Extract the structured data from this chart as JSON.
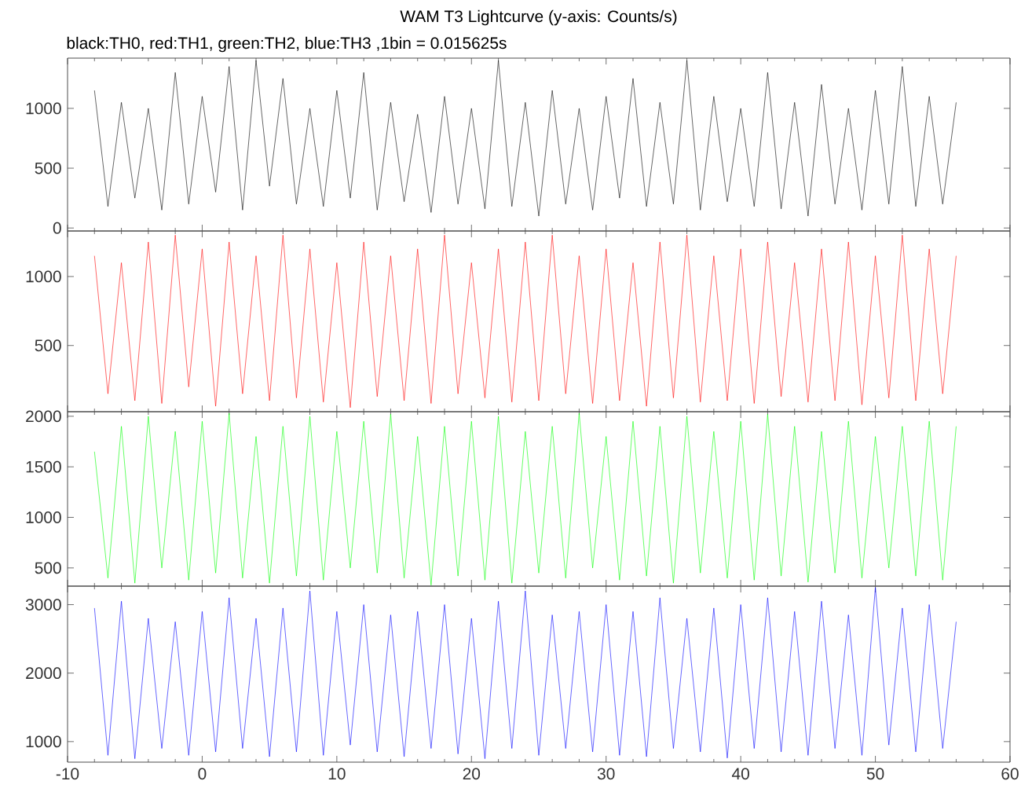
{
  "chart_data": [
    {
      "type": "line",
      "title": "WAM T3 Lightcurve (y-axis: Counts/s)",
      "subtitle": "black:TH0, red:TH1, green:TH2, blue:TH3 ,1bin = 0.015625s",
      "color": "#000000",
      "xlim": [
        -10,
        60
      ],
      "xticks": [
        -10,
        0,
        10,
        20,
        30,
        40,
        50,
        60
      ],
      "ylim": [
        -25,
        1420
      ],
      "yticks": [
        0,
        500,
        1000
      ],
      "tick_labels": "y",
      "x": [
        -8,
        -7,
        -6,
        -5,
        -4,
        -3,
        -2,
        -1,
        0,
        1,
        2,
        3,
        4,
        5,
        6,
        7,
        8,
        9,
        10,
        11,
        12,
        13,
        14,
        15,
        16,
        17,
        18,
        19,
        20,
        21,
        22,
        23,
        24,
        25,
        26,
        27,
        28,
        29,
        30,
        31,
        32,
        33,
        34,
        35,
        36,
        37,
        38,
        39,
        40,
        41,
        42,
        43,
        44,
        45,
        46,
        47,
        48,
        49,
        50,
        51,
        52,
        53,
        54,
        55,
        56
      ],
      "values": [
        1150,
        180,
        1050,
        250,
        1000,
        150,
        1300,
        200,
        1100,
        300,
        1350,
        150,
        1400,
        350,
        1250,
        200,
        1000,
        180,
        1150,
        250,
        1300,
        150,
        1050,
        220,
        950,
        130,
        1100,
        200,
        1000,
        160,
        1400,
        180,
        1050,
        100,
        1150,
        200,
        1000,
        150,
        1100,
        250,
        1250,
        180,
        1050,
        200,
        1400,
        150,
        1100,
        220,
        1000,
        180,
        1300,
        160,
        1050,
        100,
        1200,
        200,
        1000,
        150,
        1150,
        200,
        1350,
        180,
        1100,
        200,
        1050
      ]
    },
    {
      "type": "line",
      "color": "#ff0000",
      "xlim": [
        -10,
        60
      ],
      "xticks": [
        -10,
        0,
        10,
        20,
        30,
        40,
        50,
        60
      ],
      "ylim": [
        20,
        1330
      ],
      "yticks": [
        500,
        1000
      ],
      "tick_labels": "y",
      "x": [
        -8,
        -7,
        -6,
        -5,
        -4,
        -3,
        -2,
        -1,
        0,
        1,
        2,
        3,
        4,
        5,
        6,
        7,
        8,
        9,
        10,
        11,
        12,
        13,
        14,
        15,
        16,
        17,
        18,
        19,
        20,
        21,
        22,
        23,
        24,
        25,
        26,
        27,
        28,
        29,
        30,
        31,
        32,
        33,
        34,
        35,
        36,
        37,
        38,
        39,
        40,
        41,
        42,
        43,
        44,
        45,
        46,
        47,
        48,
        49,
        50,
        51,
        52,
        53,
        54,
        55,
        56
      ],
      "values": [
        1150,
        150,
        1100,
        100,
        1250,
        80,
        1300,
        200,
        1200,
        60,
        1250,
        150,
        1150,
        100,
        1300,
        120,
        1200,
        90,
        1100,
        50,
        1250,
        130,
        1150,
        100,
        1200,
        80,
        1300,
        150,
        1100,
        120,
        1200,
        90,
        1250,
        100,
        1300,
        150,
        1150,
        80,
        1200,
        100,
        1100,
        60,
        1250,
        120,
        1300,
        90,
        1150,
        100,
        1200,
        80,
        1250,
        130,
        1100,
        90,
        1200,
        100,
        1250,
        70,
        1150,
        120,
        1300,
        100,
        1200,
        150,
        1150
      ]
    },
    {
      "type": "line",
      "color": "#00ff00",
      "xlim": [
        -10,
        60
      ],
      "xticks": [
        -10,
        0,
        10,
        20,
        30,
        40,
        50,
        60
      ],
      "ylim": [
        320,
        2045
      ],
      "yticks": [
        500,
        1000,
        1500,
        2000
      ],
      "tick_labels": "y",
      "x": [
        -8,
        -7,
        -6,
        -5,
        -4,
        -3,
        -2,
        -1,
        0,
        1,
        2,
        3,
        4,
        5,
        6,
        7,
        8,
        9,
        10,
        11,
        12,
        13,
        14,
        15,
        16,
        17,
        18,
        19,
        20,
        21,
        22,
        23,
        24,
        25,
        26,
        27,
        28,
        29,
        30,
        31,
        32,
        33,
        34,
        35,
        36,
        37,
        38,
        39,
        40,
        41,
        42,
        43,
        44,
        45,
        46,
        47,
        48,
        49,
        50,
        51,
        52,
        53,
        54,
        55,
        56
      ],
      "values": [
        1650,
        400,
        1900,
        350,
        2000,
        500,
        1850,
        380,
        1950,
        450,
        2030,
        400,
        1800,
        350,
        1900,
        420,
        2000,
        380,
        1850,
        500,
        1950,
        450,
        2020,
        400,
        1800,
        330,
        1900,
        420,
        1950,
        380,
        2000,
        350,
        1850,
        450,
        1900,
        400,
        2030,
        500,
        1800,
        380,
        1950,
        420,
        1900,
        350,
        2000,
        450,
        1850,
        400,
        1950,
        380,
        2020,
        420,
        1900,
        360,
        1850,
        450,
        1950,
        400,
        1800,
        500,
        1900,
        420,
        1950,
        380,
        1900
      ]
    },
    {
      "type": "line",
      "color": "#0000ff",
      "xlim": [
        -10,
        60
      ],
      "xticks": [
        -10,
        0,
        10,
        20,
        30,
        40,
        50,
        60
      ],
      "ylim": [
        700,
        3270
      ],
      "yticks": [
        1000,
        2000,
        3000
      ],
      "x": [
        -8,
        -7,
        -6,
        -5,
        -4,
        -3,
        -2,
        -1,
        0,
        1,
        2,
        3,
        4,
        5,
        6,
        7,
        8,
        9,
        10,
        11,
        12,
        13,
        14,
        15,
        16,
        17,
        18,
        19,
        20,
        21,
        22,
        23,
        24,
        25,
        26,
        27,
        28,
        29,
        30,
        31,
        32,
        33,
        34,
        35,
        36,
        37,
        38,
        39,
        40,
        41,
        42,
        43,
        44,
        45,
        46,
        47,
        48,
        49,
        50,
        51,
        52,
        53,
        54,
        55,
        56
      ],
      "values": [
        2950,
        800,
        3050,
        750,
        2800,
        900,
        2750,
        800,
        2900,
        850,
        3100,
        900,
        2800,
        780,
        2950,
        850,
        3200,
        800,
        2900,
        950,
        3000,
        850,
        2850,
        780,
        2900,
        900,
        3000,
        820,
        2800,
        750,
        3050,
        900,
        3200,
        800,
        2850,
        900,
        2900,
        850,
        3000,
        800,
        2900,
        780,
        3100,
        900,
        2800,
        850,
        2950,
        760,
        3000,
        900,
        3100,
        850,
        2900,
        800,
        3050,
        900,
        2850,
        800,
        3250,
        950,
        2950,
        850,
        3000,
        900,
        2750
      ]
    }
  ]
}
